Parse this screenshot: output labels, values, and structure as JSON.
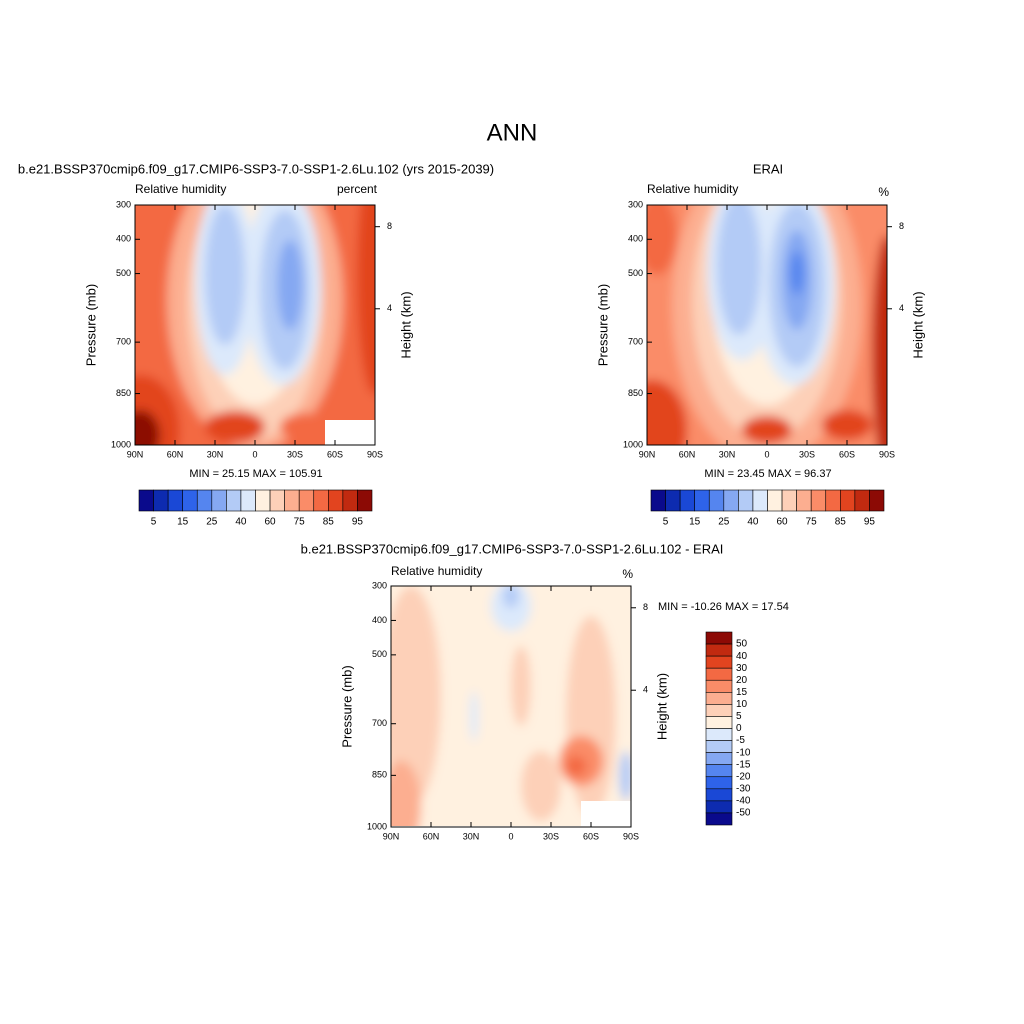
{
  "title": "ANN",
  "panels": [
    {
      "title": "b.e21.BSSP370cmip6.f09_g17.CMIP6-SSP3-7.0-SSP1-2.6Lu.102 (yrs 2015-2039)",
      "left_label": "Relative humidity",
      "right_label": "percent",
      "ylabel": "Pressure (mb)",
      "y2label": "Height (km)",
      "ylim": [
        300,
        1000
      ],
      "yticks": [
        300,
        400,
        500,
        700,
        850,
        1000
      ],
      "xlim": [
        90,
        -90
      ],
      "xticks": [
        {
          "value": 90,
          "label": "90N"
        },
        {
          "value": 60,
          "label": "60N"
        },
        {
          "value": 30,
          "label": "30N"
        },
        {
          "value": 0,
          "label": "0"
        },
        {
          "value": -30,
          "label": "30S"
        },
        {
          "value": -60,
          "label": "60S"
        },
        {
          "value": -90,
          "label": "90S"
        }
      ],
      "y2ticks": [
        8,
        4
      ],
      "stats": "MIN =  25.15  MAX = 105.91",
      "colorbar": {
        "orientation": "horizontal",
        "colors": [
          "#0a0a8c",
          "#0d2bb0",
          "#1a48d6",
          "#2e63ea",
          "#5585ef",
          "#85a8f2",
          "#b3cbf6",
          "#dce9fb",
          "#fff1e0",
          "#fdd0b8",
          "#fcae90",
          "#fa8c68",
          "#f36943",
          "#e2441f",
          "#c12a10",
          "#8c0a05"
        ],
        "labels": [
          5,
          15,
          25,
          40,
          60,
          75,
          85,
          95
        ]
      }
    },
    {
      "title": "ERAI",
      "left_label": "Relative humidity",
      "right_label": "%",
      "ylabel": "Pressure (mb)",
      "y2label": "Height (km)",
      "ylim": [
        300,
        1000
      ],
      "yticks": [
        300,
        400,
        500,
        700,
        850,
        1000
      ],
      "xlim": [
        90,
        -90
      ],
      "xticks": [
        {
          "value": 90,
          "label": "90N"
        },
        {
          "value": 60,
          "label": "60N"
        },
        {
          "value": 30,
          "label": "30N"
        },
        {
          "value": 0,
          "label": "0"
        },
        {
          "value": -30,
          "label": "30S"
        },
        {
          "value": -60,
          "label": "60S"
        },
        {
          "value": -90,
          "label": "90S"
        }
      ],
      "y2ticks": [
        8,
        4
      ],
      "stats": "MIN =  23.45  MAX =  96.37",
      "colorbar": {
        "orientation": "horizontal",
        "colors": [
          "#0a0a8c",
          "#0d2bb0",
          "#1a48d6",
          "#2e63ea",
          "#5585ef",
          "#85a8f2",
          "#b3cbf6",
          "#dce9fb",
          "#fff1e0",
          "#fdd0b8",
          "#fcae90",
          "#fa8c68",
          "#f36943",
          "#e2441f",
          "#c12a10",
          "#8c0a05"
        ],
        "labels": [
          5,
          15,
          25,
          40,
          60,
          75,
          85,
          95
        ]
      }
    },
    {
      "title": "b.e21.BSSP370cmip6.f09_g17.CMIP6-SSP3-7.0-SSP1-2.6Lu.102 - ERAI",
      "left_label": "Relative humidity",
      "right_label": "%",
      "ylabel": "Pressure (mb)",
      "y2label": "Height (km)",
      "ylim": [
        300,
        1000
      ],
      "yticks": [
        300,
        400,
        500,
        700,
        850,
        1000
      ],
      "xlim": [
        90,
        -90
      ],
      "xticks": [
        {
          "value": 90,
          "label": "90N"
        },
        {
          "value": 60,
          "label": "60N"
        },
        {
          "value": 30,
          "label": "30N"
        },
        {
          "value": 0,
          "label": "0"
        },
        {
          "value": -30,
          "label": "30S"
        },
        {
          "value": -60,
          "label": "60S"
        },
        {
          "value": -90,
          "label": "90S"
        }
      ],
      "y2ticks": [
        8,
        4
      ],
      "stats": "MIN = -10.26  MAX =  17.54",
      "colorbar": {
        "orientation": "vertical",
        "colors": [
          "#8c0a05",
          "#c12a10",
          "#e2441f",
          "#f36943",
          "#fa8c68",
          "#fcae90",
          "#fdd0b8",
          "#fff1e0",
          "#dce9fb",
          "#b3cbf6",
          "#85a8f2",
          "#5585ef",
          "#2e63ea",
          "#1a48d6",
          "#0d2bb0",
          "#0a0a8c"
        ],
        "labels": [
          50,
          40,
          30,
          20,
          15,
          10,
          5,
          0,
          -5,
          -10,
          -15,
          -20,
          -30,
          -40,
          -50
        ]
      }
    }
  ]
}
